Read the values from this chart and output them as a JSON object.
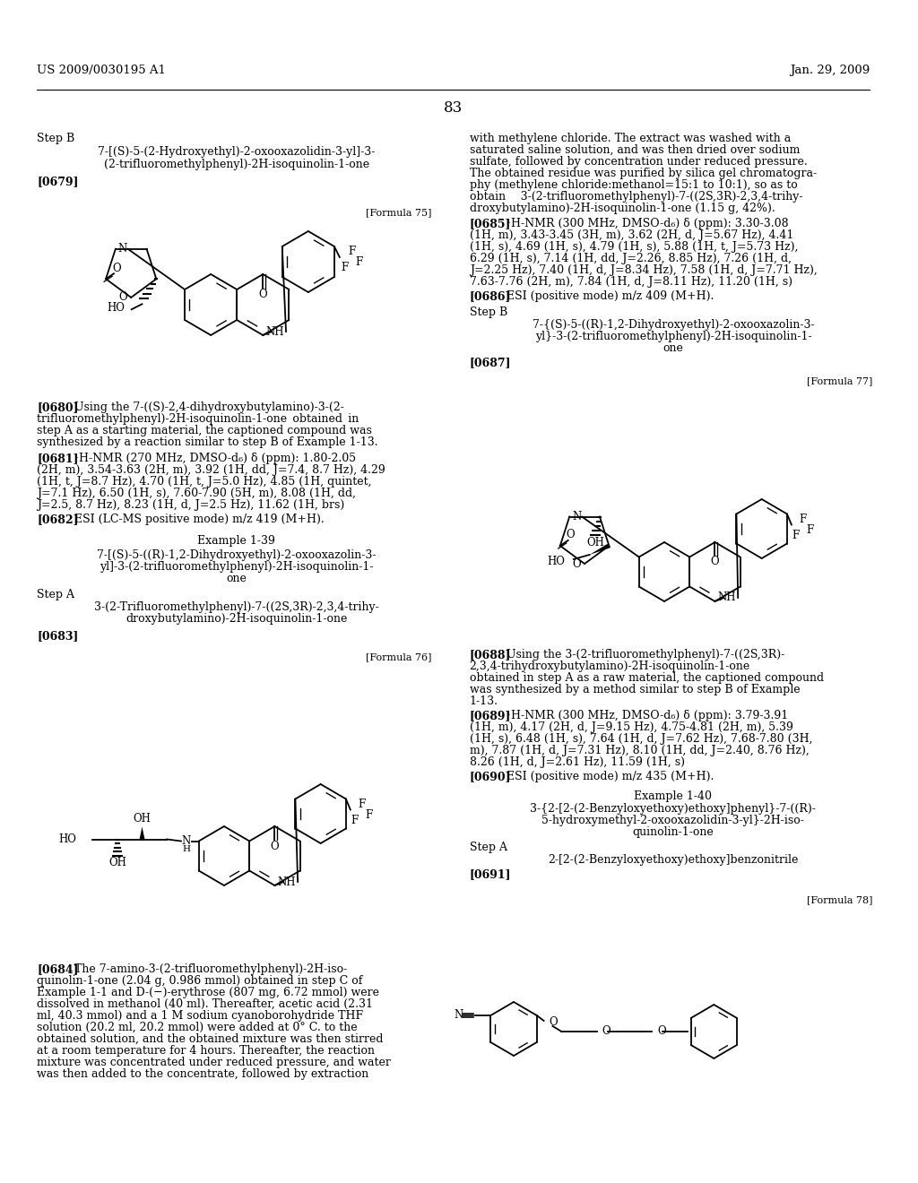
{
  "bg": "#ffffff",
  "header_left": "US 2009/0030195 A1",
  "header_right": "Jan. 29, 2009",
  "page_num": "83"
}
